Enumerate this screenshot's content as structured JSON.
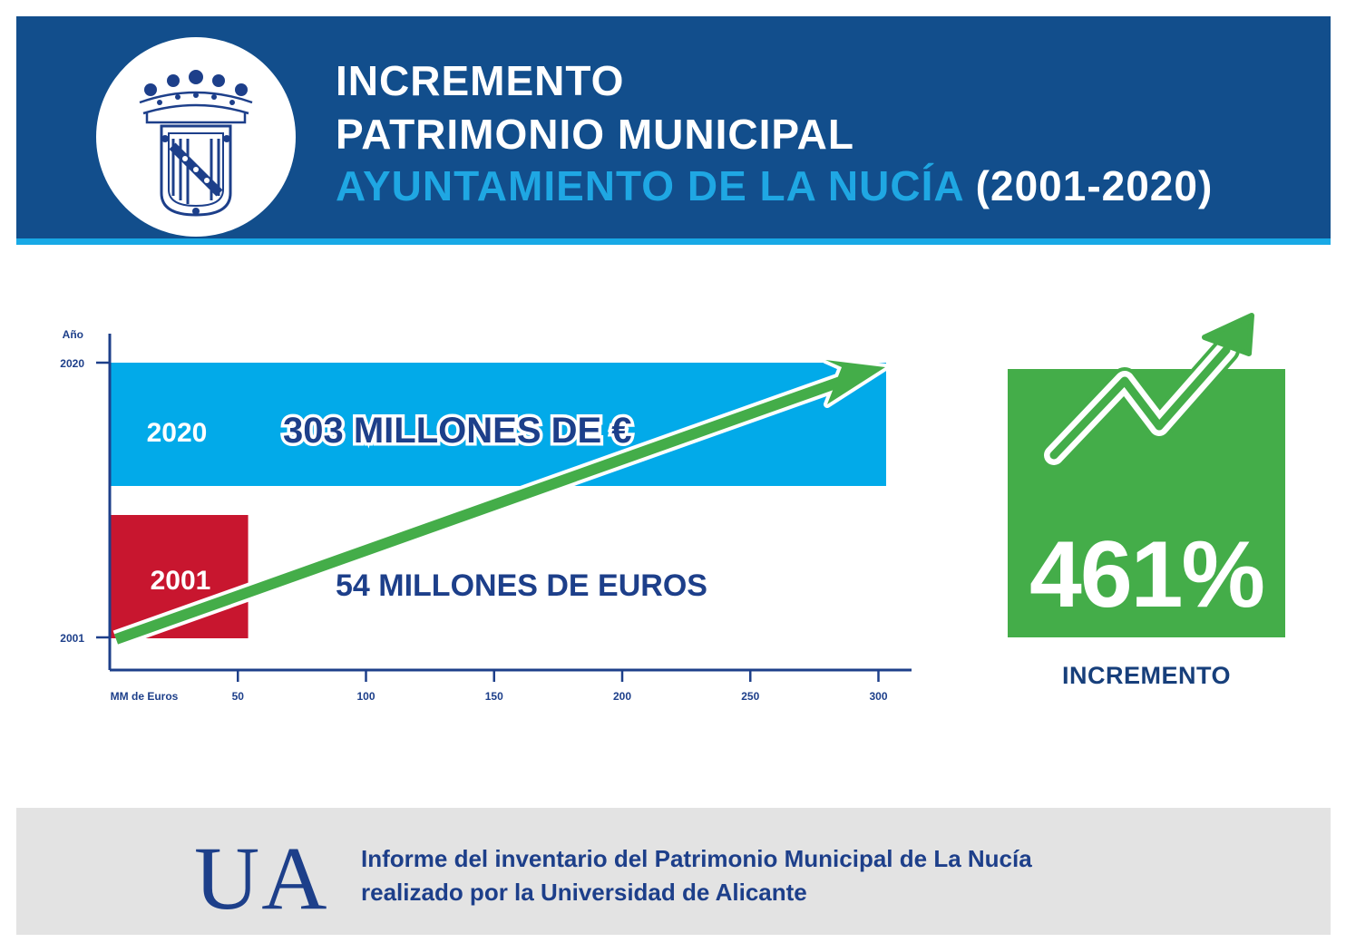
{
  "header": {
    "line1": "INCREMENTO",
    "line2": "PATRIMONIO MUNICIPAL",
    "line3_cyan": "AYUNTAMIENTO DE LA NUCÍA",
    "line3_white": "(2001-2020)"
  },
  "chart_data": {
    "type": "bar",
    "orientation": "horizontal",
    "categories": [
      "2001",
      "2020"
    ],
    "values": [
      54,
      303
    ],
    "bar_labels": [
      "2001",
      "2020"
    ],
    "value_labels": [
      "54 MILLONES DE EUROS",
      "303 MILLONES DE €"
    ],
    "xlabel": "MM de Euros",
    "ylabel": "Año",
    "xticks": [
      50,
      100,
      150,
      200,
      250,
      300
    ],
    "yticks": [
      "2020",
      "2001"
    ],
    "xlim": [
      0,
      310
    ],
    "colors": {
      "2001": "#c8162f",
      "2020": "#02aae9",
      "trend_arrow": "#44ad49"
    }
  },
  "increment": {
    "value": "461%",
    "label": "INCREMENTO"
  },
  "footer": {
    "logo_text": "UA",
    "line1": "Informe del inventario del Patrimonio Municipal de La Nucía",
    "line2": "realizado por la Universidad de Alicante"
  },
  "icons": [
    "coat-of-arms-icon",
    "trend-arrow-icon"
  ]
}
